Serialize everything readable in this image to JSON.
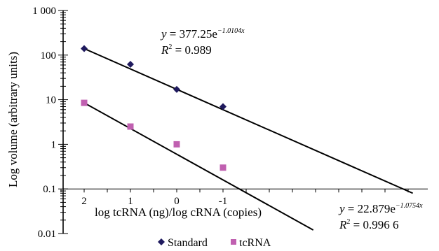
{
  "chart_data": {
    "type": "scatter",
    "ylabel": "Log volume (arbitrary units)",
    "xlabel": "log tcRNA (ng)/log cRNA (copies)",
    "yscale": "log",
    "ylim": [
      0.01,
      1000
    ],
    "y_ticks": [
      "0.01",
      "0.1",
      "1",
      "10",
      "100",
      "1 000"
    ],
    "x_ticks": [
      "2",
      "1",
      "0",
      "-1"
    ],
    "x_ticks_numeric": [
      2,
      1,
      0,
      -1
    ],
    "xlim": [
      2.5,
      -5.5
    ],
    "grid": false,
    "legend_position": "bottom",
    "series": [
      {
        "name": "Standard",
        "color": "#1f1a5e",
        "marker": "diamond",
        "x": [
          2,
          1,
          0,
          -1
        ],
        "y": [
          140,
          62,
          17,
          7
        ],
        "trendline": {
          "a": 377.25,
          "b": -1.0104,
          "equation_y": "y",
          "equation_mid": " = 377.25e",
          "equation_exp": "−1.0104x",
          "r2_prefix": "R",
          "r2_value": " = 0.989"
        }
      },
      {
        "name": "tcRNA",
        "color": "#c060b0",
        "marker": "square",
        "x": [
          2,
          1,
          0,
          -1
        ],
        "y": [
          8.5,
          2.5,
          1.0,
          0.3
        ],
        "trendline": {
          "a": 22.879,
          "b": -1.0754,
          "equation_y": "y",
          "equation_mid": " = 22.879e",
          "equation_exp": "−1.0754x",
          "r2_prefix": "R",
          "r2_value": " = 0.996 6"
        }
      }
    ]
  }
}
